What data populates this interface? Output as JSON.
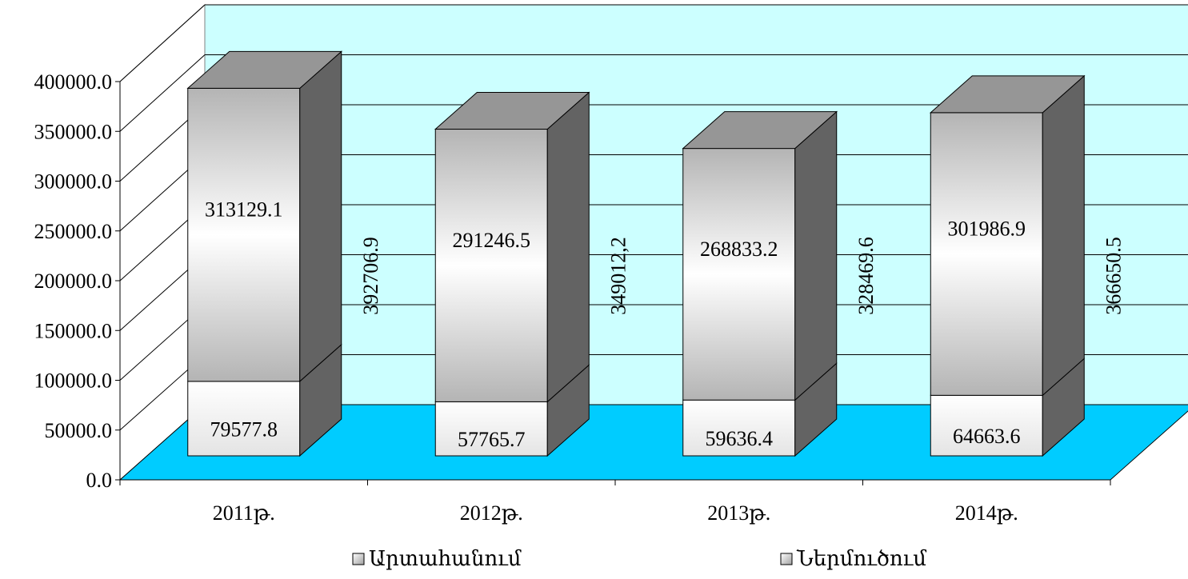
{
  "chart_data": {
    "type": "bar",
    "stacked": true,
    "three_d": true,
    "categories": [
      "2011թ.",
      "2012թ.",
      "2013թ.",
      "2014թ."
    ],
    "series": [
      {
        "name": "Ներմուծում",
        "values": [
          79577.8,
          57765.7,
          59636.4,
          64663.6
        ],
        "labels": [
          "79577.8",
          "57765.7",
          "59636.4",
          "64663.6"
        ]
      },
      {
        "name": "Արտահանում",
        "values": [
          313129.1,
          291246.5,
          268833.2,
          301986.9
        ],
        "labels": [
          "313129.1",
          "291246.5",
          "268833.2",
          "301986.9"
        ]
      }
    ],
    "totals": [
      392706.9,
      349012.2,
      328469.6,
      366650.5
    ],
    "total_labels": [
      "392706.9",
      "349012,2",
      "328469.6",
      "366650.5"
    ],
    "ylim": [
      0,
      400000
    ],
    "yticks": [
      0,
      50000,
      100000,
      150000,
      200000,
      250000,
      300000,
      350000,
      400000
    ],
    "ytick_labels": [
      "0.0",
      "50000.0",
      "100000.0",
      "150000.0",
      "200000.0",
      "250000.0",
      "300000.0",
      "350000.0",
      "400000.0"
    ],
    "legend": {
      "placement": "bottom",
      "entries": [
        "Արտահանում",
        "Ներմուծում"
      ]
    },
    "grid": true,
    "title": "",
    "xlabel": "",
    "ylabel": ""
  },
  "colors": {
    "back_wall": "#ccffff",
    "floor": "#00ccff",
    "export_gradient": [
      "#b4b4b4",
      "#ffffff",
      "#b4b4b4"
    ],
    "import_gradient": [
      "#ffffff",
      "#e4e4e4"
    ],
    "side_face": "#636363",
    "top_face": "#969696",
    "grid": "#000000"
  }
}
